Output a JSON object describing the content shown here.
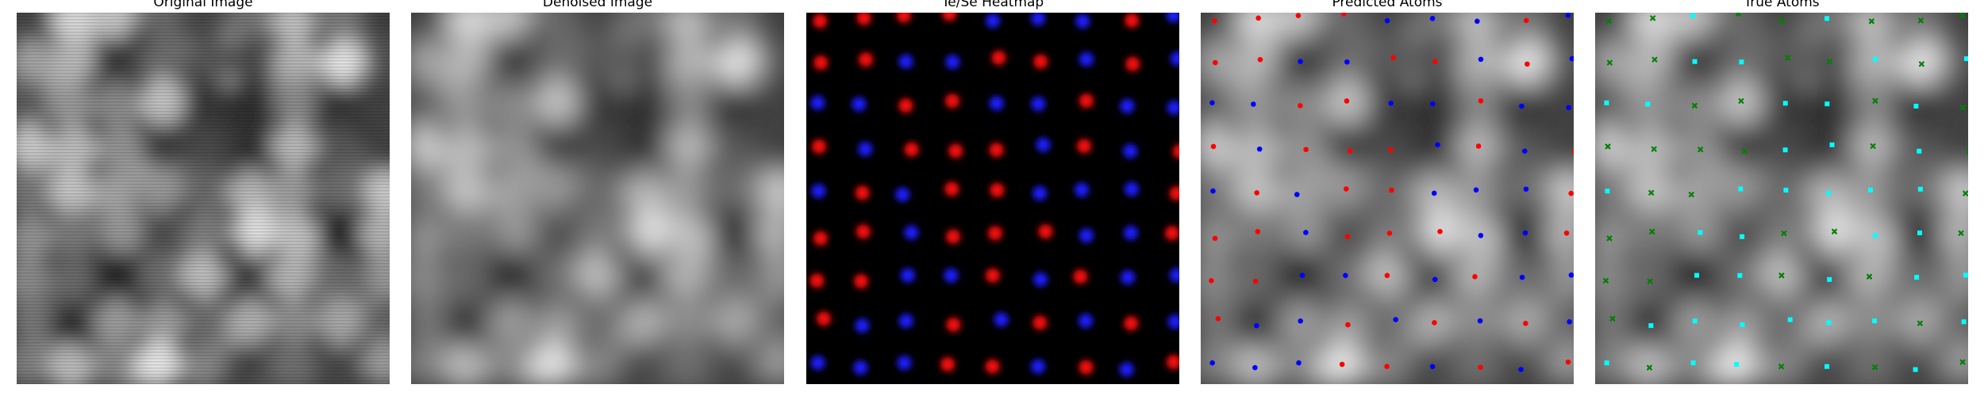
{
  "panels": [
    {
      "title": "Original Image"
    },
    {
      "title": "Denoised Image"
    },
    {
      "title": "Te/Se Heatmap"
    },
    {
      "title": "Predicted Atoms"
    },
    {
      "title": "True Atoms"
    }
  ]
}
